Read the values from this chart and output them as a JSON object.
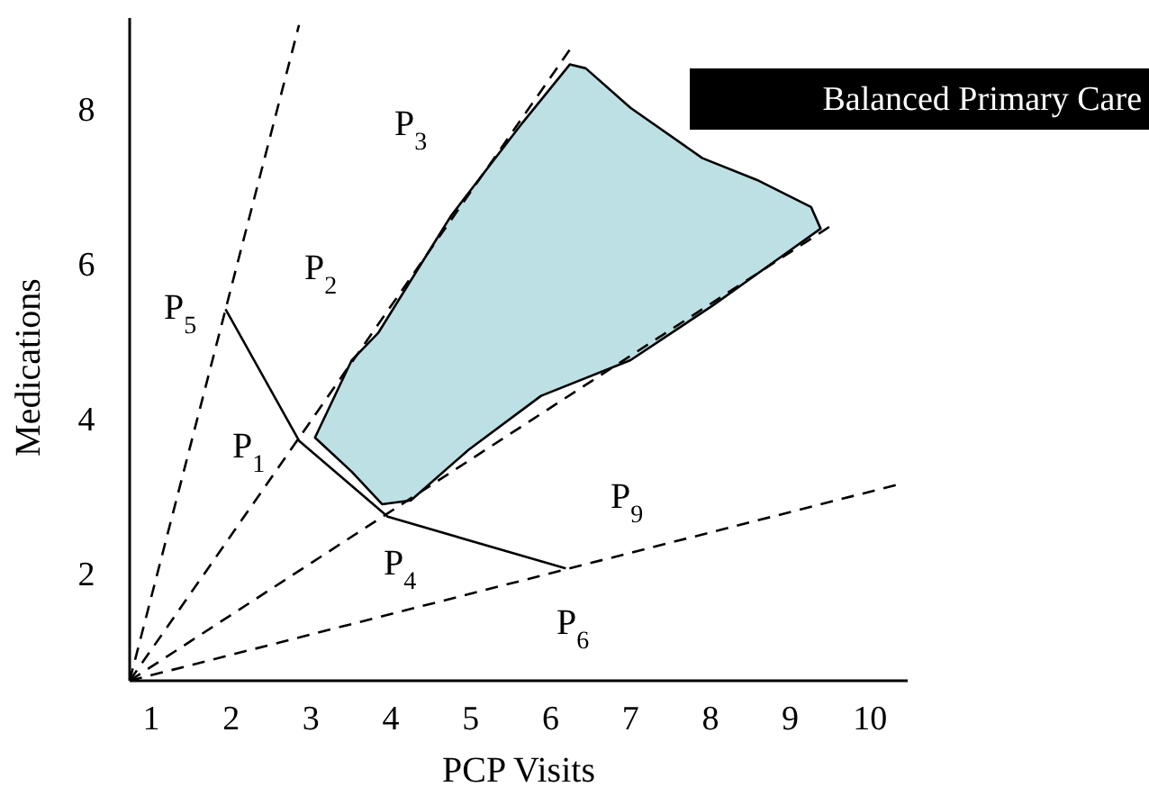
{
  "chart_data": {
    "type": "line",
    "xlabel": "PCP Visits",
    "ylabel": "Medications",
    "xlim": [
      0.73,
      10.47
    ],
    "ylim": [
      0.6,
      9.16
    ],
    "xticks": [
      1,
      2,
      3,
      4,
      5,
      6,
      7,
      8,
      9,
      10
    ],
    "yticks": [
      2,
      4,
      6,
      8
    ],
    "grid": false,
    "series": [
      {
        "type": "area",
        "color": "#bde0e4",
        "x": [
          3.05,
          3.51,
          3.84,
          4.75,
          5.65,
          6.24,
          6.44,
          7.0,
          7.9,
          8.58,
          9.26,
          9.38,
          8.81,
          8.02,
          7.0,
          5.88,
          4.97,
          4.25,
          3.89,
          3.51,
          3.05
        ],
        "values": [
          3.74,
          4.74,
          5.09,
          6.6,
          7.81,
          8.56,
          8.51,
          8.0,
          7.35,
          7.07,
          6.72,
          6.44,
          6.02,
          5.44,
          4.74,
          4.28,
          3.58,
          2.93,
          2.88,
          3.3,
          3.74
        ]
      },
      {
        "color": "#000000",
        "line_style": "dashed",
        "x": [
          0.73,
          2.85
        ],
        "values": [
          0.6,
          9.07
        ]
      },
      {
        "color": "#000000",
        "line_style": "dashed",
        "x": [
          0.73,
          6.28
        ],
        "values": [
          0.6,
          8.81
        ]
      },
      {
        "color": "#000000",
        "line_style": "dashed",
        "x": [
          0.73,
          9.53
        ],
        "values": [
          0.6,
          6.49
        ]
      },
      {
        "color": "#000000",
        "line_style": "dashed",
        "x": [
          0.73,
          10.37
        ],
        "values": [
          0.6,
          3.14
        ]
      },
      {
        "color": "#000000",
        "line_style": "solid",
        "x": [
          1.93,
          2.85,
          3.96,
          6.19
        ],
        "values": [
          5.4,
          3.7,
          2.72,
          2.05
        ]
      }
    ],
    "annotations": [
      "P$_{3}$",
      "P$_{2}$",
      "P$_{5}$",
      "P$_{1}$",
      "P$_{4}$",
      "P$_{6}$",
      "P$_{9}$",
      "Balanced Primary Care"
    ]
  }
}
